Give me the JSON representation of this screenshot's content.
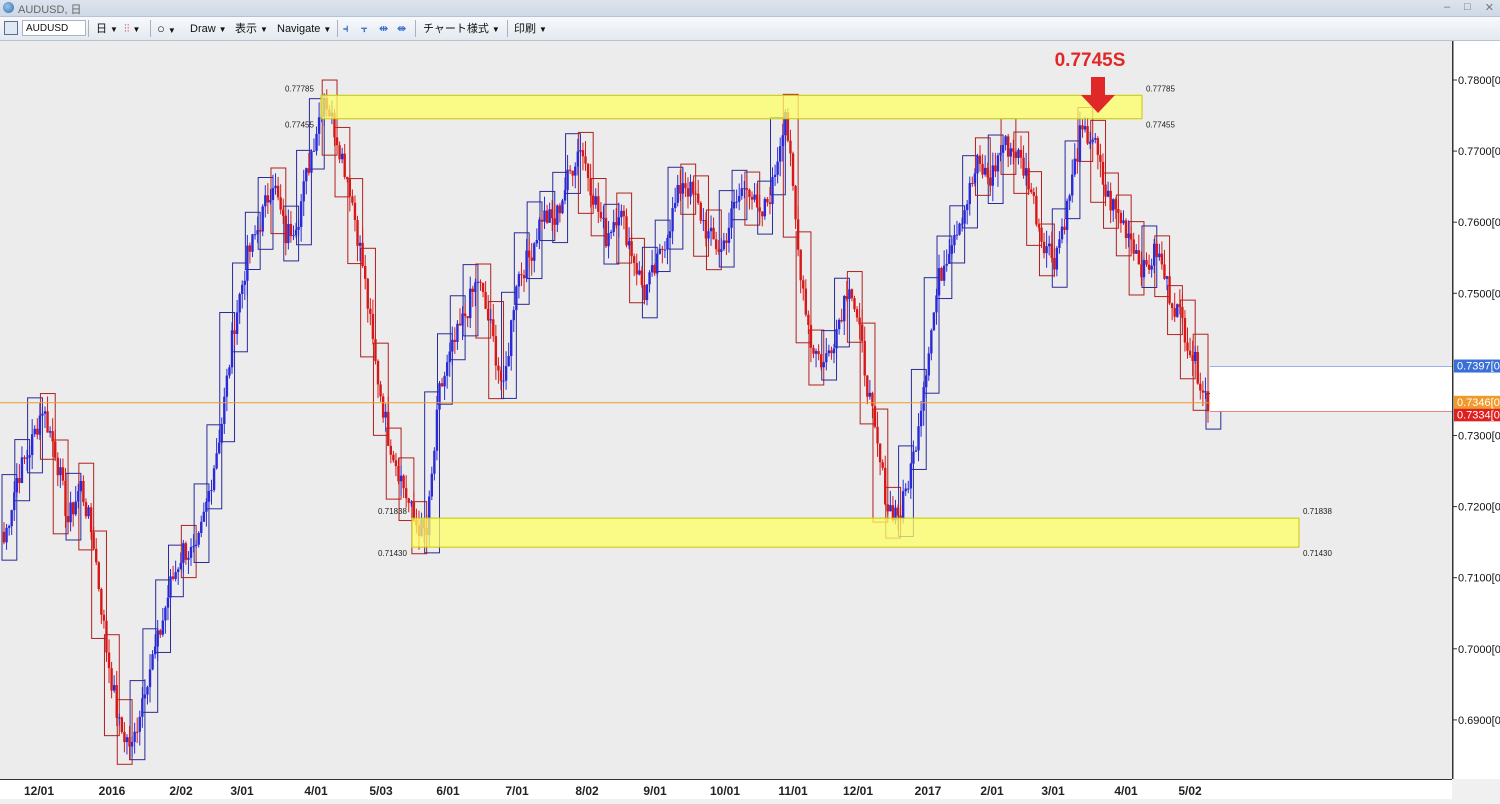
{
  "window": {
    "title": "AUDUSD, 日",
    "controls": [
      "–",
      "□",
      "✕"
    ]
  },
  "toolbar": {
    "symbol": "AUDUSD",
    "timeframe": "日",
    "draw": "Draw",
    "display": "表示",
    "navigate": "Navigate",
    "chart_style": "チャート様式",
    "print": "印刷"
  },
  "chart_data": {
    "type": "line",
    "title": "",
    "symbol": "AUDUSD",
    "timeframe": "daily",
    "ylim": [
      0.682,
      0.785
    ],
    "y_ticks": [
      0.78,
      0.77,
      0.76,
      0.75,
      0.74,
      0.73,
      0.72,
      0.71,
      0.7,
      0.69
    ],
    "y_tick_labels": [
      "0.7800[0",
      "0.7700[0",
      "0.7600[0",
      "0.7500[0",
      "0.7300[0",
      "0.7200[0",
      "0.7100[0",
      "0.7000[0",
      "0.6900[0"
    ],
    "x_tick_labels": [
      "12/01",
      "2016",
      "2/02",
      "3/01",
      "4/01",
      "5/03",
      "6/01",
      "7/01",
      "8/02",
      "9/01",
      "10/01",
      "11/01",
      "12/01",
      "2017",
      "2/01",
      "3/01",
      "4/01",
      "5/02"
    ],
    "series": [
      {
        "values": [
          0.715,
          0.724,
          0.728,
          0.734,
          0.728,
          0.718,
          0.723,
          0.715,
          0.7,
          0.689,
          0.686,
          0.695,
          0.701,
          0.709,
          0.714,
          0.713,
          0.722,
          0.732,
          0.746,
          0.755,
          0.76,
          0.766,
          0.758,
          0.761,
          0.77,
          0.778,
          0.772,
          0.765,
          0.754,
          0.74,
          0.73,
          0.724,
          0.718,
          0.716,
          0.736,
          0.742,
          0.747,
          0.752,
          0.745,
          0.736,
          0.752,
          0.755,
          0.761,
          0.76,
          0.766,
          0.771,
          0.764,
          0.758,
          0.762,
          0.756,
          0.75,
          0.754,
          0.76,
          0.766,
          0.763,
          0.758,
          0.756,
          0.762,
          0.766,
          0.76,
          0.765,
          0.776,
          0.756,
          0.743,
          0.74,
          0.745,
          0.752,
          0.742,
          0.73,
          0.72,
          0.719,
          0.727,
          0.74,
          0.752,
          0.758,
          0.762,
          0.768,
          0.766,
          0.771,
          0.77,
          0.766,
          0.758,
          0.755,
          0.762,
          0.772,
          0.772,
          0.764,
          0.761,
          0.758,
          0.753,
          0.756,
          0.75,
          0.746,
          0.74,
          0.735
        ]
      }
    ],
    "price_lines": [
      {
        "label": "0.7397",
        "value": 0.7397,
        "color": "#3a6fd8"
      },
      {
        "label": "0.7346",
        "value": 0.7346,
        "color": "#f09a2c"
      },
      {
        "label": "0.7334",
        "value": 0.7334,
        "color": "#e02020"
      }
    ],
    "zones": [
      {
        "top_label": "0.77785",
        "bottom_label": "0.77455",
        "top": 0.77785,
        "bottom": 0.77455
      },
      {
        "top_label": "0.71838",
        "bottom_label": "0.71430",
        "top": 0.71838,
        "bottom": 0.7143
      }
    ],
    "annotation": {
      "text": "0.7745S",
      "value": 0.7745,
      "color": "#e02828"
    },
    "colors": {
      "up": "#2a2ad8",
      "down": "#d81818",
      "box_up": "#2a2a9a",
      "box_down": "#b02020"
    },
    "grid": false
  }
}
